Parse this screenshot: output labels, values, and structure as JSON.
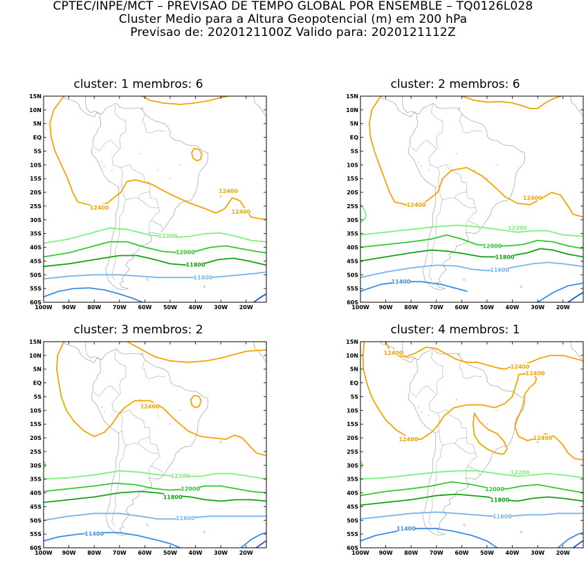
{
  "header": {
    "line1": "CPTEC/INPE/MCT – PREVISAO DE TEMPO GLOBAL POR ENSEMBLE – TQ0126L028",
    "line2": "Cluster Medio para a Altura Geopotencial (m) em 200 hPa",
    "line3": "Previsao de: 2020121100Z    Valido para: 2020121112Z"
  },
  "axes": {
    "lat_ticks": [
      "15N",
      "10N",
      "5N",
      "EQ",
      "5S",
      "10S",
      "15S",
      "20S",
      "25S",
      "30S",
      "35S",
      "40S",
      "45S",
      "50S",
      "55S",
      "60S"
    ],
    "lon_ticks": [
      "100W",
      "90W",
      "80W",
      "70W",
      "60W",
      "50W",
      "40W",
      "30W",
      "20W"
    ]
  },
  "colors": {
    "c12400": "#f5a300",
    "c12200": "#7ef07e",
    "c12000": "#2ec82e",
    "c11800": "#12a012",
    "c11600": "#78b4ee",
    "c11400": "#3c8ce6",
    "c11200": "#1e56c8",
    "coast": "#aaaaaa"
  },
  "panels": [
    {
      "title": "cluster:  1    membros:  6",
      "labels": {
        "l12400a": "12400",
        "l12400b": "12400",
        "l12400c": "12400",
        "l12200": "12200",
        "l12000": "12000",
        "l11800": "11800",
        "l11600": "11600"
      }
    },
    {
      "title": "cluster:  2    membros:  6",
      "labels": {
        "l12400a": "12400",
        "l12400b": "12400",
        "l12200": "12200",
        "l12000": "12000",
        "l11800": "11800",
        "l11600": "11600",
        "l11400": "11400"
      }
    },
    {
      "title": "cluster:  3    membros:  2",
      "labels": {
        "l12400a": "12400",
        "l12200": "12200",
        "l12000": "12000",
        "l11800": "11800",
        "l11600": "11600",
        "l11400": "11400"
      }
    },
    {
      "title": "cluster:  4    membros:  1",
      "labels": {
        "l12400a": "12400",
        "l12400b": "12400",
        "l12400c": "12400",
        "l12400d": "12400",
        "l12400e": "12400",
        "l12200": "12200",
        "l12000": "12000",
        "l11800": "11800",
        "l11600": "11600",
        "l11400": "11400"
      }
    }
  ]
}
